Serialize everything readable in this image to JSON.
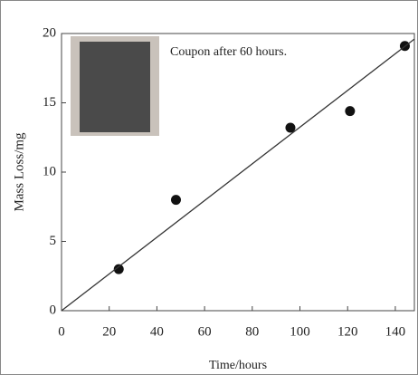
{
  "chart_data": {
    "type": "scatter",
    "x_label": "Time/hours",
    "y_label": "Mass Loss/mg",
    "annotation": "Coupon after 60 hours.",
    "series": [
      {
        "x": [
          24,
          48,
          96,
          121,
          144
        ],
        "values": [
          3,
          8,
          13.2,
          14.4,
          19.1
        ],
        "color": "#111111",
        "style": "points"
      },
      {
        "x": [
          0,
          148
        ],
        "values": [
          0,
          19.6
        ],
        "color": "#333333",
        "style": "line"
      }
    ],
    "xlim": [
      0,
      148
    ],
    "xticks": [
      0,
      20,
      40,
      60,
      80,
      100,
      120,
      140
    ],
    "ylim": [
      0,
      20
    ],
    "yticks": [
      0,
      5,
      10,
      15,
      20
    ]
  }
}
